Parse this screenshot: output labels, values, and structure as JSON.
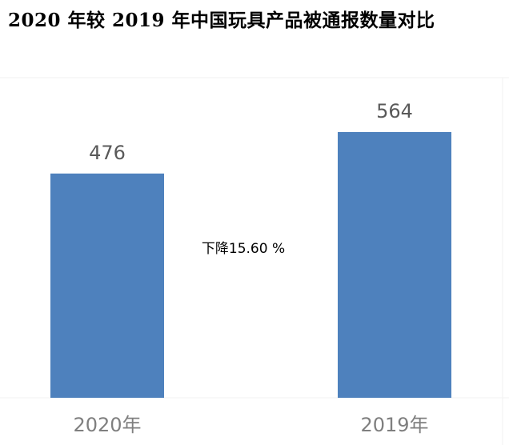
{
  "title": "2020 年较 2019 年中国玩具产品被通报数量对比",
  "colors": {
    "bar": "#4e81bd",
    "value_label": "#595959",
    "category_label": "#7f7f7f",
    "annotation": "#000000",
    "frame": "#f0f0f0"
  },
  "chart_data": {
    "type": "bar",
    "categories": [
      "2020年",
      "2019年"
    ],
    "values": [
      476,
      564
    ],
    "data_labels": [
      "476",
      "564"
    ],
    "annotation": "下降15.60 %",
    "title": "2020 年较 2019 年中国玩具产品被通报数量对比",
    "xlabel": "",
    "ylabel": "",
    "ylim": [
      0,
      564
    ],
    "grid": false,
    "legend": "none"
  }
}
